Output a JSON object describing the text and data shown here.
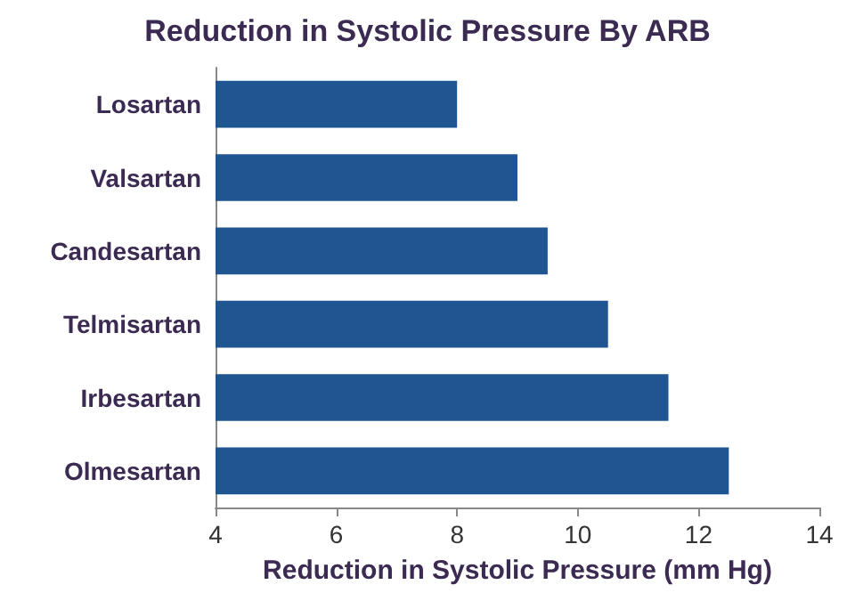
{
  "chart_data": {
    "type": "bar",
    "orientation": "horizontal",
    "title": "Reduction in Systolic Pressure By ARB",
    "xlabel": "Reduction in Systolic Pressure (mm Hg)",
    "categories": [
      "Losartan",
      "Valsartan",
      "Candesartan",
      "Telmisartan",
      "Irbesartan",
      "Olmesartan"
    ],
    "values": [
      8,
      9,
      9.5,
      10.5,
      11.5,
      12.5
    ],
    "color": "#1f5591",
    "xlim": [
      4,
      14
    ],
    "xticks": [
      4,
      6,
      8,
      10,
      12,
      14
    ]
  }
}
